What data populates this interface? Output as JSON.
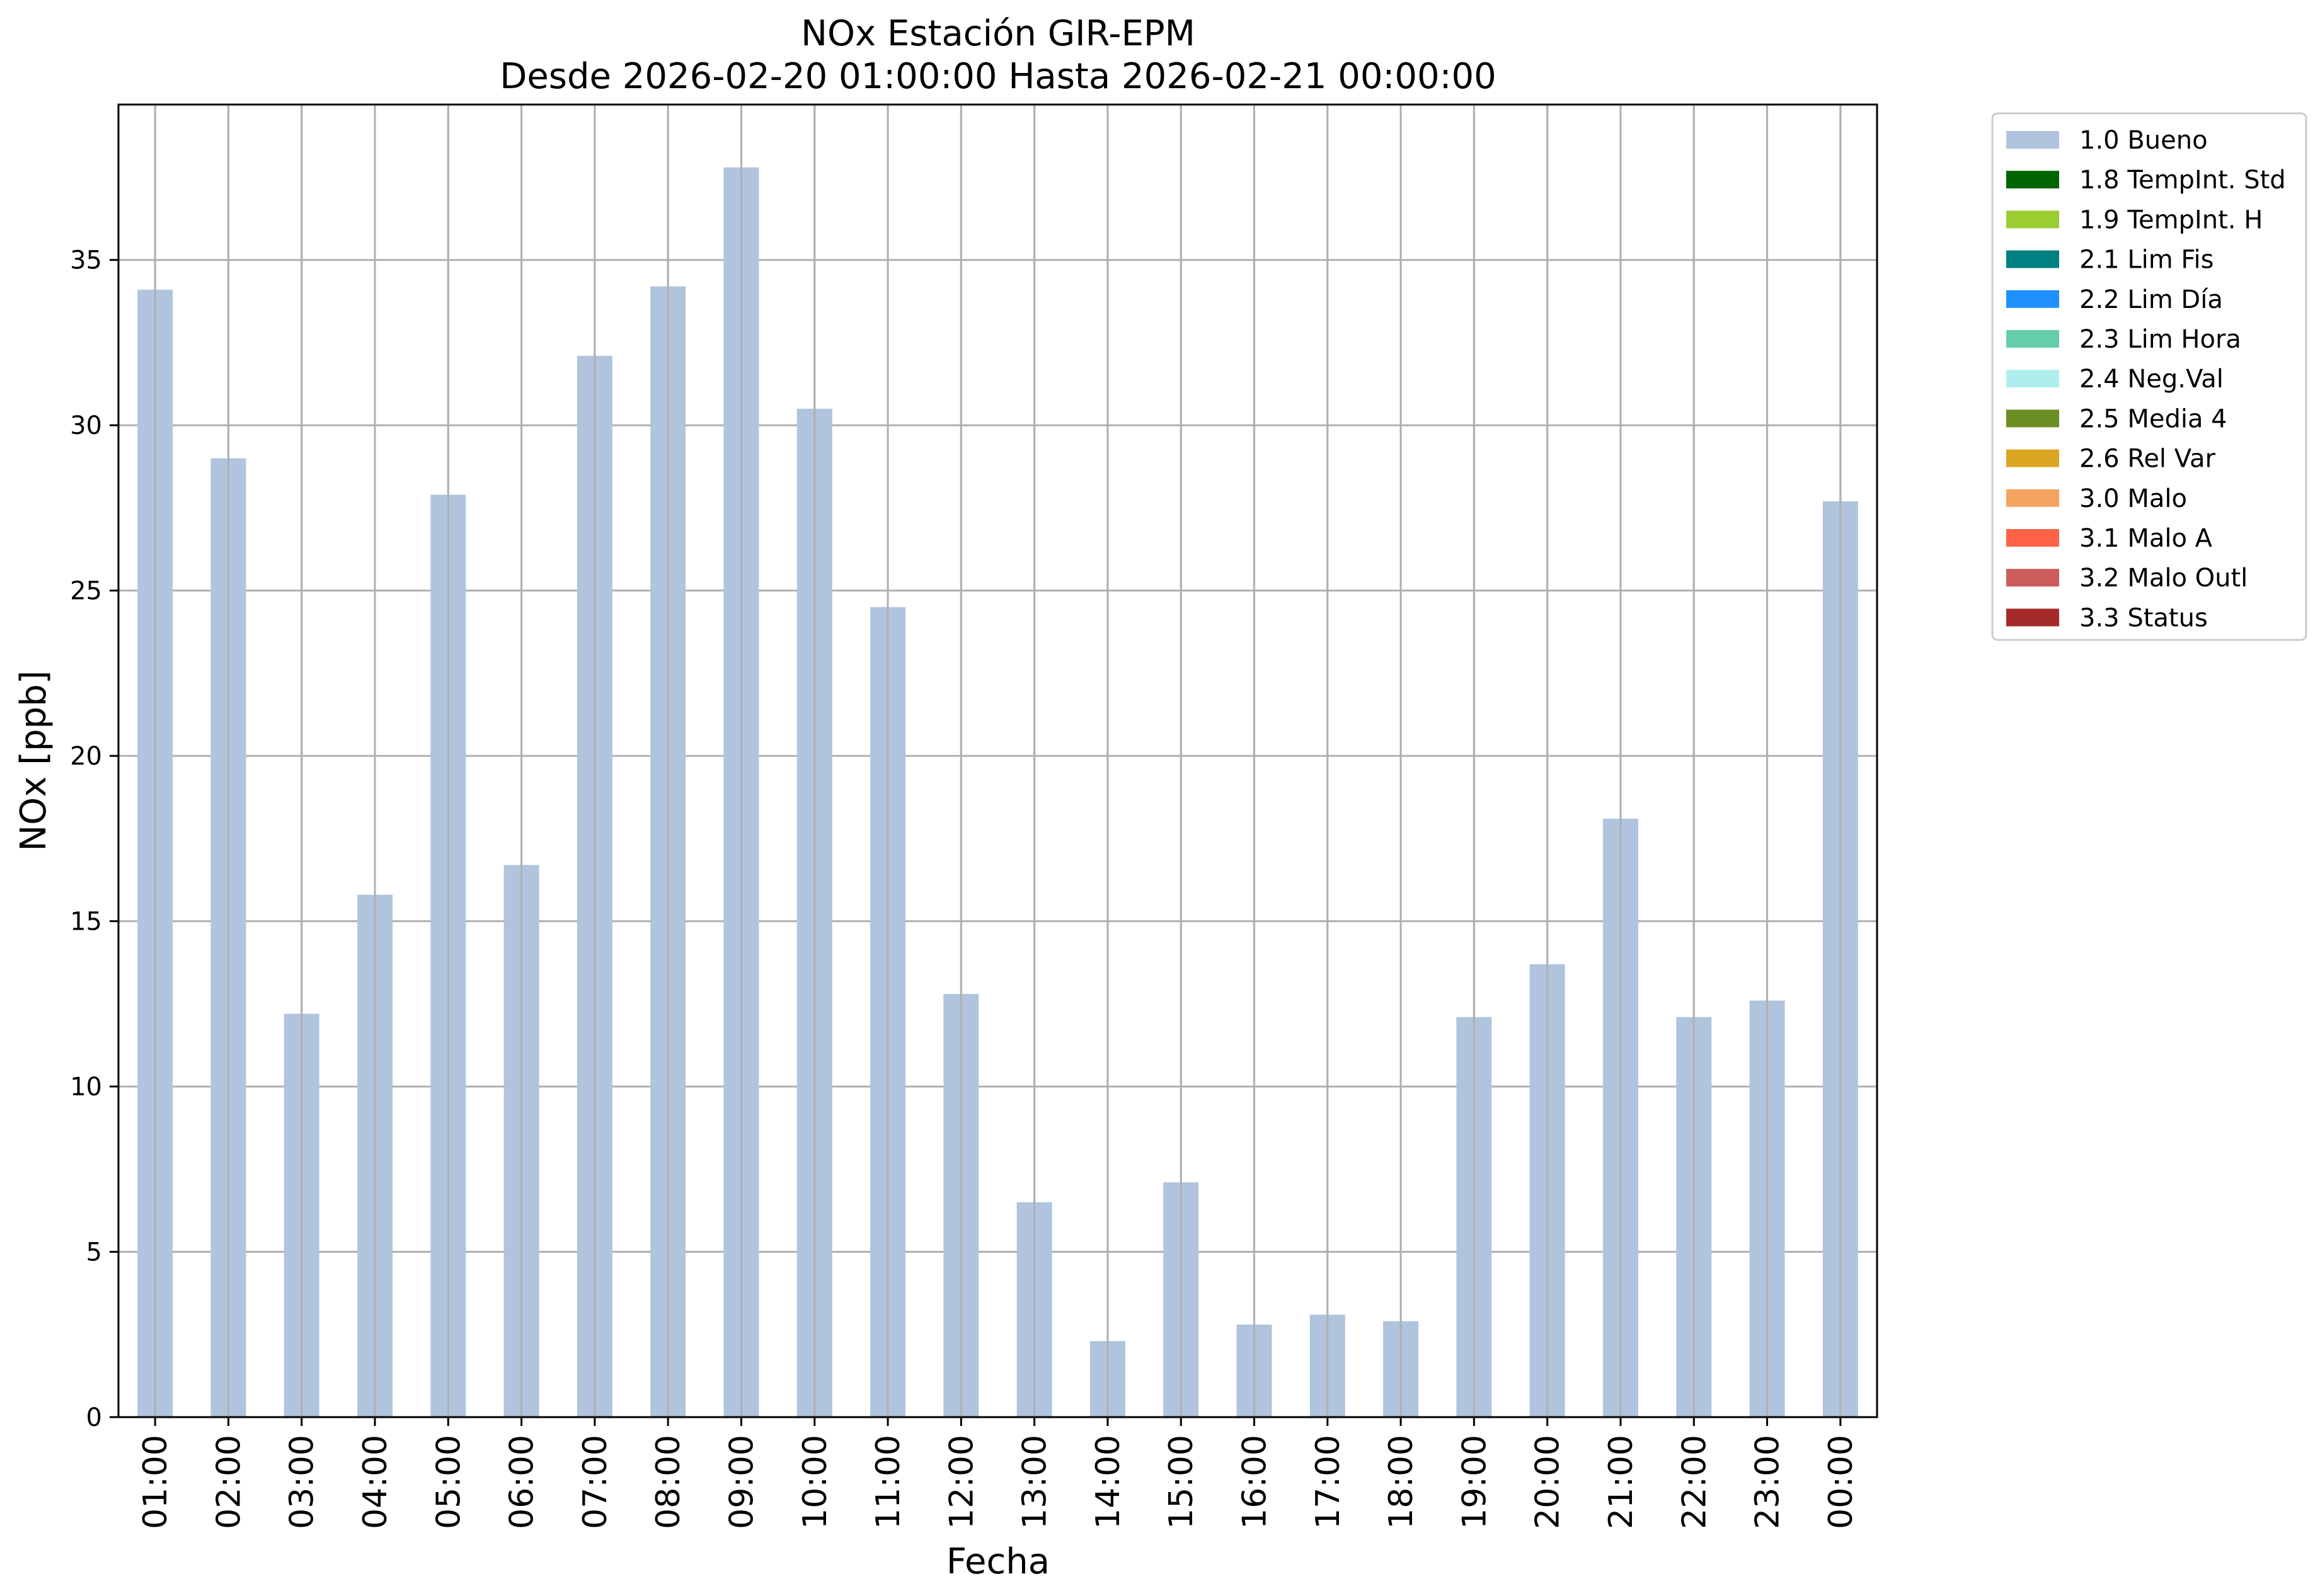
{
  "chart_data": {
    "type": "bar",
    "title_line1": "NOx Estación GIR-EPM",
    "title_line2": "Desde 2026-02-20 01:00:00 Hasta 2026-02-21 00:00:00",
    "xlabel": "Fecha",
    "ylabel": "NOx [ppb]",
    "ylim": [
      0,
      39.7
    ],
    "yticks": [
      0,
      5,
      10,
      15,
      20,
      25,
      30,
      35
    ],
    "grid": true,
    "legend_position": "outside-right",
    "categories": [
      "01:00",
      "02:00",
      "03:00",
      "04:00",
      "05:00",
      "06:00",
      "07:00",
      "08:00",
      "09:00",
      "10:00",
      "11:00",
      "12:00",
      "13:00",
      "14:00",
      "15:00",
      "16:00",
      "17:00",
      "18:00",
      "19:00",
      "20:00",
      "21:00",
      "22:00",
      "23:00",
      "00:00"
    ],
    "series": [
      {
        "name": "1.0 Bueno",
        "color": "#b0c4de",
        "values": [
          34.1,
          29.0,
          12.2,
          15.8,
          27.9,
          16.7,
          32.1,
          34.2,
          37.8,
          30.5,
          24.5,
          12.8,
          6.5,
          2.3,
          7.1,
          2.8,
          3.1,
          2.9,
          12.1,
          13.7,
          18.1,
          12.1,
          12.6,
          27.7
        ]
      }
    ],
    "legend": [
      {
        "label": "1.0 Bueno",
        "color": "#b0c4de"
      },
      {
        "label": "1.8 TempInt. Std",
        "color": "#006400"
      },
      {
        "label": "1.9 TempInt. H",
        "color": "#9acd32"
      },
      {
        "label": "2.1 Lim Fis",
        "color": "#008080"
      },
      {
        "label": "2.2 Lim Día",
        "color": "#1e90ff"
      },
      {
        "label": "2.3 Lim Hora",
        "color": "#66cdaa"
      },
      {
        "label": "2.4 Neg.Val",
        "color": "#afeeee"
      },
      {
        "label": "2.5 Media 4",
        "color": "#6b8e23"
      },
      {
        "label": "2.6 Rel Var",
        "color": "#daa520"
      },
      {
        "label": "3.0 Malo",
        "color": "#f4a460"
      },
      {
        "label": "3.1 Malo A",
        "color": "#ff6347"
      },
      {
        "label": "3.2 Malo Outl",
        "color": "#cd5c5c"
      },
      {
        "label": "3.3 Status",
        "color": "#a52a2a"
      }
    ]
  }
}
